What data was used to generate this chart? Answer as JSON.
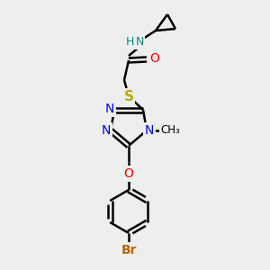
{
  "bg_color": "#eeeeee",
  "bond_color": "#000000",
  "bond_width": 1.8,
  "atom_colors": {
    "N": "#0000ee",
    "O": "#ee0000",
    "S": "#bbaa00",
    "Br": "#bb6600",
    "NH": "#008888"
  },
  "font_size": 9
}
